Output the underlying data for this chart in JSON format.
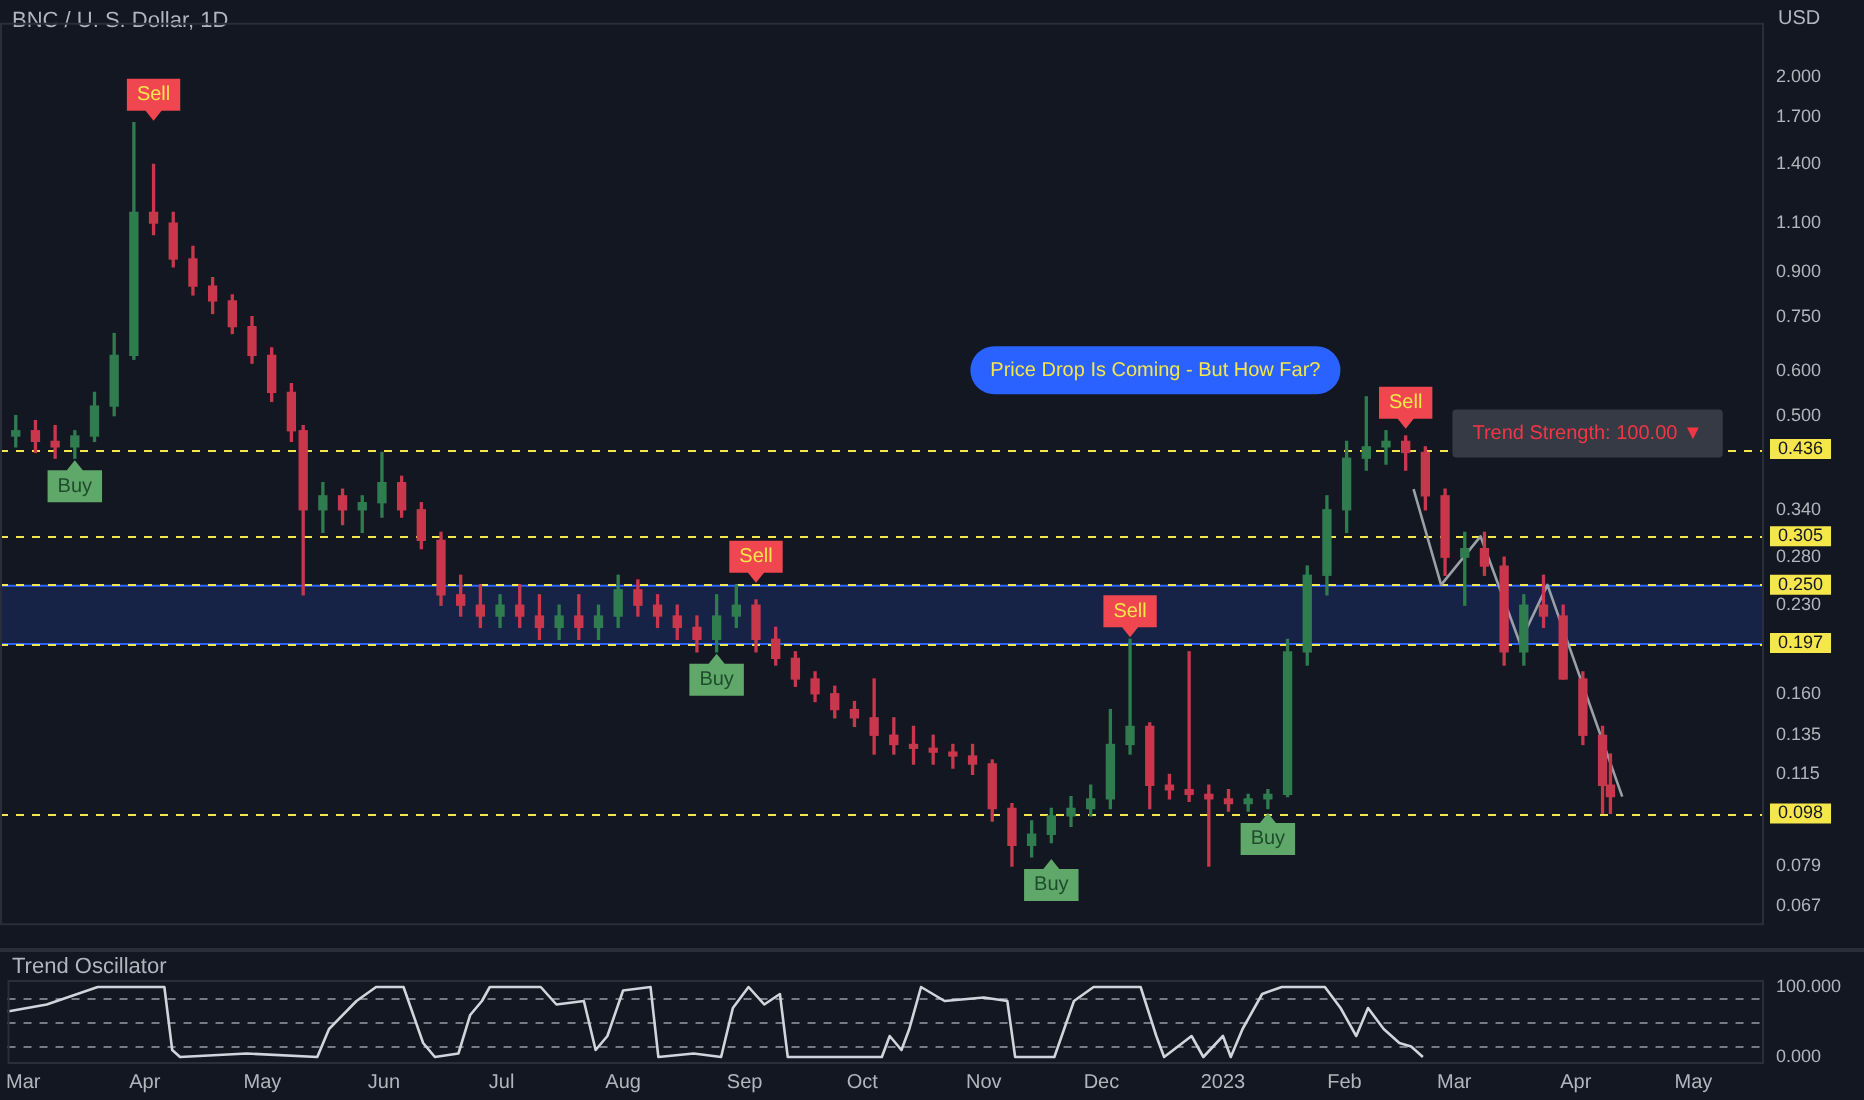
{
  "chart_data": [
    {
      "type": "candlestick",
      "title": "BNC / U. S. Dollar, 1D",
      "ylabel": "USD",
      "log": true,
      "grid": false,
      "legend": false,
      "tick_labels": "y",
      "xlim": [
        "2022-02-25",
        "2023-05-19"
      ],
      "ylim": [
        0.062,
        2.5
      ],
      "yticks": [
        {
          "value": 2,
          "label": "2.000"
        },
        {
          "value": 1.7,
          "label": "1.700"
        },
        {
          "value": 1.4,
          "label": "1.400"
        },
        {
          "value": 1.1,
          "label": "1.100"
        },
        {
          "value": 0.9,
          "label": "0.900"
        },
        {
          "value": 0.75,
          "label": "0.750"
        },
        {
          "value": 0.6,
          "label": "0.600"
        },
        {
          "value": 0.5,
          "label": "0.500"
        },
        {
          "value": 0.34,
          "label": "0.340"
        },
        {
          "value": 0.28,
          "label": "0.280"
        },
        {
          "value": 0.23,
          "label": "0.230"
        },
        {
          "value": 0.16,
          "label": "0.160"
        },
        {
          "value": 0.135,
          "label": "0.135"
        },
        {
          "value": 0.115,
          "label": "0.115"
        },
        {
          "value": 0.079,
          "label": "0.079"
        },
        {
          "value": 0.067,
          "label": "0.067"
        }
      ],
      "x": [
        "2022-03-01",
        "2022-03-06",
        "2022-03-11",
        "2022-03-16",
        "2022-03-21",
        "2022-03-26",
        "2022-03-31",
        "2022-04-05",
        "2022-04-10",
        "2022-04-15",
        "2022-04-20",
        "2022-04-25",
        "2022-04-30",
        "2022-05-05",
        "2022-05-10",
        "2022-05-13",
        "2022-05-18",
        "2022-05-23",
        "2022-05-28",
        "2022-06-02",
        "2022-06-07",
        "2022-06-12",
        "2022-06-17",
        "2022-06-22",
        "2022-06-27",
        "2022-07-02",
        "2022-07-07",
        "2022-07-12",
        "2022-07-17",
        "2022-07-22",
        "2022-07-27",
        "2022-08-01",
        "2022-08-06",
        "2022-08-11",
        "2022-08-16",
        "2022-08-21",
        "2022-08-26",
        "2022-08-31",
        "2022-09-05",
        "2022-09-10",
        "2022-09-15",
        "2022-09-20",
        "2022-09-25",
        "2022-09-30",
        "2022-10-05",
        "2022-10-10",
        "2022-10-15",
        "2022-10-20",
        "2022-10-25",
        "2022-10-30",
        "2022-11-04",
        "2022-11-09",
        "2022-11-14",
        "2022-11-19",
        "2022-11-24",
        "2022-11-29",
        "2022-12-04",
        "2022-12-09",
        "2022-12-14",
        "2022-12-19",
        "2022-12-24",
        "2022-12-29",
        "2023-01-03",
        "2023-01-08",
        "2023-01-13",
        "2023-01-18",
        "2023-01-23",
        "2023-01-28",
        "2023-02-02",
        "2023-02-07",
        "2023-02-12",
        "2023-02-17",
        "2023-02-22",
        "2023-02-27",
        "2023-03-04",
        "2023-03-09",
        "2023-03-14",
        "2023-03-19",
        "2023-03-24",
        "2023-03-29",
        "2023-04-03",
        "2023-04-08",
        "2023-04-10"
      ],
      "ohlc": [
        [
          0.46,
          0.5,
          0.44,
          0.47
        ],
        [
          0.47,
          0.49,
          0.43,
          0.45
        ],
        [
          0.45,
          0.48,
          0.42,
          0.44
        ],
        [
          0.44,
          0.47,
          0.42,
          0.46
        ],
        [
          0.46,
          0.55,
          0.45,
          0.52
        ],
        [
          0.52,
          0.7,
          0.5,
          0.64
        ],
        [
          0.64,
          1.66,
          0.63,
          1.15
        ],
        [
          1.15,
          1.4,
          1.05,
          1.1
        ],
        [
          1.1,
          1.15,
          0.92,
          0.95
        ],
        [
          0.95,
          1,
          0.82,
          0.85
        ],
        [
          0.85,
          0.88,
          0.76,
          0.8
        ],
        [
          0.8,
          0.82,
          0.7,
          0.72
        ],
        [
          0.72,
          0.75,
          0.62,
          0.64
        ],
        [
          0.64,
          0.66,
          0.53,
          0.55
        ],
        [
          0.55,
          0.57,
          0.45,
          0.47
        ],
        [
          0.47,
          0.48,
          0.24,
          0.34
        ],
        [
          0.34,
          0.38,
          0.31,
          0.36
        ],
        [
          0.36,
          0.37,
          0.32,
          0.34
        ],
        [
          0.34,
          0.36,
          0.31,
          0.35
        ],
        [
          0.35,
          0.43,
          0.33,
          0.38
        ],
        [
          0.38,
          0.39,
          0.33,
          0.34
        ],
        [
          0.34,
          0.35,
          0.29,
          0.3
        ],
        [
          0.3,
          0.31,
          0.23,
          0.24
        ],
        [
          0.24,
          0.26,
          0.22,
          0.23
        ],
        [
          0.23,
          0.25,
          0.21,
          0.22
        ],
        [
          0.22,
          0.24,
          0.21,
          0.23
        ],
        [
          0.23,
          0.25,
          0.21,
          0.22
        ],
        [
          0.22,
          0.24,
          0.2,
          0.21
        ],
        [
          0.21,
          0.23,
          0.2,
          0.22
        ],
        [
          0.22,
          0.24,
          0.2,
          0.21
        ],
        [
          0.21,
          0.23,
          0.2,
          0.22
        ],
        [
          0.22,
          0.26,
          0.21,
          0.245
        ],
        [
          0.245,
          0.255,
          0.22,
          0.23
        ],
        [
          0.23,
          0.24,
          0.21,
          0.22
        ],
        [
          0.22,
          0.23,
          0.2,
          0.21
        ],
        [
          0.21,
          0.22,
          0.19,
          0.2
        ],
        [
          0.2,
          0.24,
          0.19,
          0.22
        ],
        [
          0.22,
          0.25,
          0.21,
          0.23
        ],
        [
          0.23,
          0.235,
          0.19,
          0.2
        ],
        [
          0.2,
          0.21,
          0.18,
          0.185
        ],
        [
          0.185,
          0.19,
          0.165,
          0.17
        ],
        [
          0.17,
          0.175,
          0.155,
          0.16
        ],
        [
          0.16,
          0.165,
          0.145,
          0.15
        ],
        [
          0.15,
          0.155,
          0.14,
          0.145
        ],
        [
          0.145,
          0.17,
          0.125,
          0.135
        ],
        [
          0.135,
          0.145,
          0.125,
          0.13
        ],
        [
          0.13,
          0.14,
          0.12,
          0.128
        ],
        [
          0.128,
          0.135,
          0.12,
          0.126
        ],
        [
          0.126,
          0.13,
          0.118,
          0.124
        ],
        [
          0.124,
          0.13,
          0.115,
          0.12
        ],
        [
          0.12,
          0.122,
          0.095,
          0.1
        ],
        [
          0.1,
          0.102,
          0.079,
          0.086
        ],
        [
          0.086,
          0.095,
          0.082,
          0.09
        ],
        [
          0.09,
          0.1,
          0.087,
          0.097
        ],
        [
          0.097,
          0.105,
          0.093,
          0.1
        ],
        [
          0.1,
          0.11,
          0.097,
          0.104
        ],
        [
          0.104,
          0.15,
          0.1,
          0.13
        ],
        [
          0.13,
          0.2,
          0.125,
          0.14
        ],
        [
          0.14,
          0.142,
          0.1,
          0.11
        ],
        [
          0.11,
          0.115,
          0.104,
          0.108
        ],
        [
          0.108,
          0.19,
          0.103,
          0.106
        ],
        [
          0.106,
          0.11,
          0.079,
          0.104
        ],
        [
          0.104,
          0.108,
          0.099,
          0.102
        ],
        [
          0.102,
          0.106,
          0.099,
          0.104
        ],
        [
          0.104,
          0.108,
          0.1,
          0.106
        ],
        [
          0.106,
          0.2,
          0.105,
          0.19
        ],
        [
          0.19,
          0.27,
          0.18,
          0.26
        ],
        [
          0.26,
          0.36,
          0.24,
          0.34
        ],
        [
          0.34,
          0.45,
          0.31,
          0.42
        ],
        [
          0.42,
          0.54,
          0.4,
          0.44
        ],
        [
          0.44,
          0.47,
          0.41,
          0.45
        ],
        [
          0.45,
          0.46,
          0.4,
          0.43
        ],
        [
          0.43,
          0.44,
          0.34,
          0.36
        ],
        [
          0.36,
          0.37,
          0.26,
          0.28
        ],
        [
          0.28,
          0.31,
          0.23,
          0.29
        ],
        [
          0.29,
          0.31,
          0.26,
          0.27
        ],
        [
          0.27,
          0.28,
          0.18,
          0.19
        ],
        [
          0.19,
          0.24,
          0.18,
          0.23
        ],
        [
          0.23,
          0.26,
          0.21,
          0.22
        ],
        [
          0.22,
          0.23,
          0.17,
          0.17
        ],
        [
          0.17,
          0.175,
          0.13,
          0.135
        ],
        [
          0.135,
          0.14,
          0.098,
          0.11
        ],
        [
          0.11,
          0.125,
          0.098,
          0.105
        ]
      ],
      "series": [
        {
          "type": "line",
          "x": [
            "2023-02-19",
            "2023-02-26",
            "2023-03-08",
            "2023-03-18",
            "2023-03-25",
            "2023-04-13"
          ],
          "values": [
            0.37,
            0.25,
            0.305,
            0.197,
            0.25,
            0.105
          ],
          "color": "#9aa0a6"
        }
      ],
      "ref_lines": [
        {
          "axis": "y",
          "value": 0.436,
          "label": "0.436",
          "color": "#f5e64b",
          "line_style": "dashed"
        },
        {
          "axis": "y",
          "value": 0.305,
          "label": "0.305",
          "color": "#f5e64b",
          "line_style": "dashed"
        },
        {
          "axis": "y",
          "value": 0.25,
          "label": "0.250",
          "color": "#f5e64b",
          "line_style": "dashed"
        },
        {
          "axis": "y",
          "value": 0.197,
          "label": "0.197",
          "color": "#f5e64b",
          "line_style": "dashed"
        },
        {
          "axis": "y",
          "value": 0.098,
          "label": "0.098",
          "color": "#f5e64b",
          "line_style": "dashed"
        }
      ],
      "bands": [
        {
          "axis": "y",
          "from": 0.197,
          "to": 0.25,
          "color": "#1e3a8a"
        }
      ],
      "annotations": [
        "Price Drop Is Coming - But How Far?",
        "Trend Strength: 100.00 ▼",
        {
          "text": "Sell",
          "x": "2022-04-05",
          "y": 1.4
        },
        {
          "text": "Buy",
          "x": "2022-03-16",
          "y": 0.42
        },
        {
          "text": "Sell",
          "x": "2022-09-05",
          "y": 0.235
        },
        {
          "text": "Buy",
          "x": "2022-08-26",
          "y": 0.19
        },
        {
          "text": "Sell",
          "x": "2022-12-09",
          "y": 0.2
        },
        {
          "text": "Buy",
          "x": "2022-11-19",
          "y": 0.087
        },
        {
          "text": "Buy",
          "x": "2023-01-13",
          "y": 0.1
        },
        {
          "text": "Sell",
          "x": "2023-02-17",
          "y": 0.46
        }
      ]
    },
    {
      "type": "line",
      "title": "Trend Oscillator",
      "grid": false,
      "legend": false,
      "marker": "none",
      "xlim": [
        "2022-02-25",
        "2023-05-19"
      ],
      "xticks": [
        {
          "value": "2022-03-01",
          "label": "Mar"
        },
        {
          "value": "2022-04-01",
          "label": "Apr"
        },
        {
          "value": "2022-05-01",
          "label": "May"
        },
        {
          "value": "2022-06-01",
          "label": "Jun"
        },
        {
          "value": "2022-07-01",
          "label": "Jul"
        },
        {
          "value": "2022-08-01",
          "label": "Aug"
        },
        {
          "value": "2022-09-01",
          "label": "Sep"
        },
        {
          "value": "2022-10-01",
          "label": "Oct"
        },
        {
          "value": "2022-11-01",
          "label": "Nov"
        },
        {
          "value": "2022-12-01",
          "label": "Dec"
        },
        {
          "value": "2023-01-01",
          "label": "2023"
        },
        {
          "value": "2023-02-01",
          "label": "Feb"
        },
        {
          "value": "2023-03-01",
          "label": "Mar"
        },
        {
          "value": "2023-04-01",
          "label": "Apr"
        },
        {
          "value": "2023-05-01",
          "label": "May"
        }
      ],
      "ylim": [
        -10,
        110
      ],
      "yticks": [
        {
          "value": 100,
          "label": "100.000"
        },
        {
          "value": 0,
          "label": "0.000"
        }
      ],
      "x": [
        "2022-02-25",
        "2022-03-07",
        "2022-03-20",
        "2022-04-06",
        "2022-04-08",
        "2022-04-10",
        "2022-04-27",
        "2022-05-15",
        "2022-05-18",
        "2022-05-25",
        "2022-05-30",
        "2022-06-06",
        "2022-06-11",
        "2022-06-14",
        "2022-06-20",
        "2022-06-23",
        "2022-06-26",
        "2022-06-28",
        "2022-07-11",
        "2022-07-15",
        "2022-07-22",
        "2022-07-25",
        "2022-07-28",
        "2022-08-01",
        "2022-08-08",
        "2022-08-10",
        "2022-08-19",
        "2022-08-26",
        "2022-08-29",
        "2022-09-02",
        "2022-09-06",
        "2022-09-10",
        "2022-09-12",
        "2022-10-06",
        "2022-10-08",
        "2022-10-11",
        "2022-10-13",
        "2022-10-16",
        "2022-10-22",
        "2022-11-01",
        "2022-11-07",
        "2022-11-09",
        "2022-11-19",
        "2022-11-24",
        "2022-11-29",
        "2022-12-11",
        "2022-12-15",
        "2022-12-17",
        "2022-12-24",
        "2022-12-27",
        "2023-01-01",
        "2023-01-03",
        "2023-01-06",
        "2023-01-11",
        "2023-01-16",
        "2023-01-27",
        "2023-01-31",
        "2023-02-04",
        "2023-02-07",
        "2023-02-11",
        "2023-02-15",
        "2023-02-18",
        "2023-02-21"
      ],
      "values": [
        65,
        75,
        100,
        100,
        10,
        0,
        5,
        0,
        40,
        80,
        100,
        100,
        20,
        0,
        5,
        60,
        80,
        100,
        100,
        75,
        80,
        10,
        30,
        95,
        100,
        0,
        5,
        0,
        70,
        100,
        75,
        90,
        0,
        0,
        30,
        10,
        40,
        100,
        80,
        85,
        80,
        0,
        0,
        80,
        100,
        100,
        30,
        0,
        30,
        0,
        30,
        0,
        40,
        90,
        100,
        100,
        70,
        30,
        70,
        40,
        20,
        15,
        0
      ],
      "color": "#d1d4dc",
      "ref_lines": [
        {
          "axis": "y",
          "value": 85,
          "color": "#787b86",
          "line_style": "dashed"
        },
        {
          "axis": "y",
          "value": 50,
          "color": "#787b86",
          "line_style": "dashed"
        },
        {
          "axis": "y",
          "value": 15,
          "color": "#787b86",
          "line_style": "dashed"
        }
      ]
    }
  ]
}
